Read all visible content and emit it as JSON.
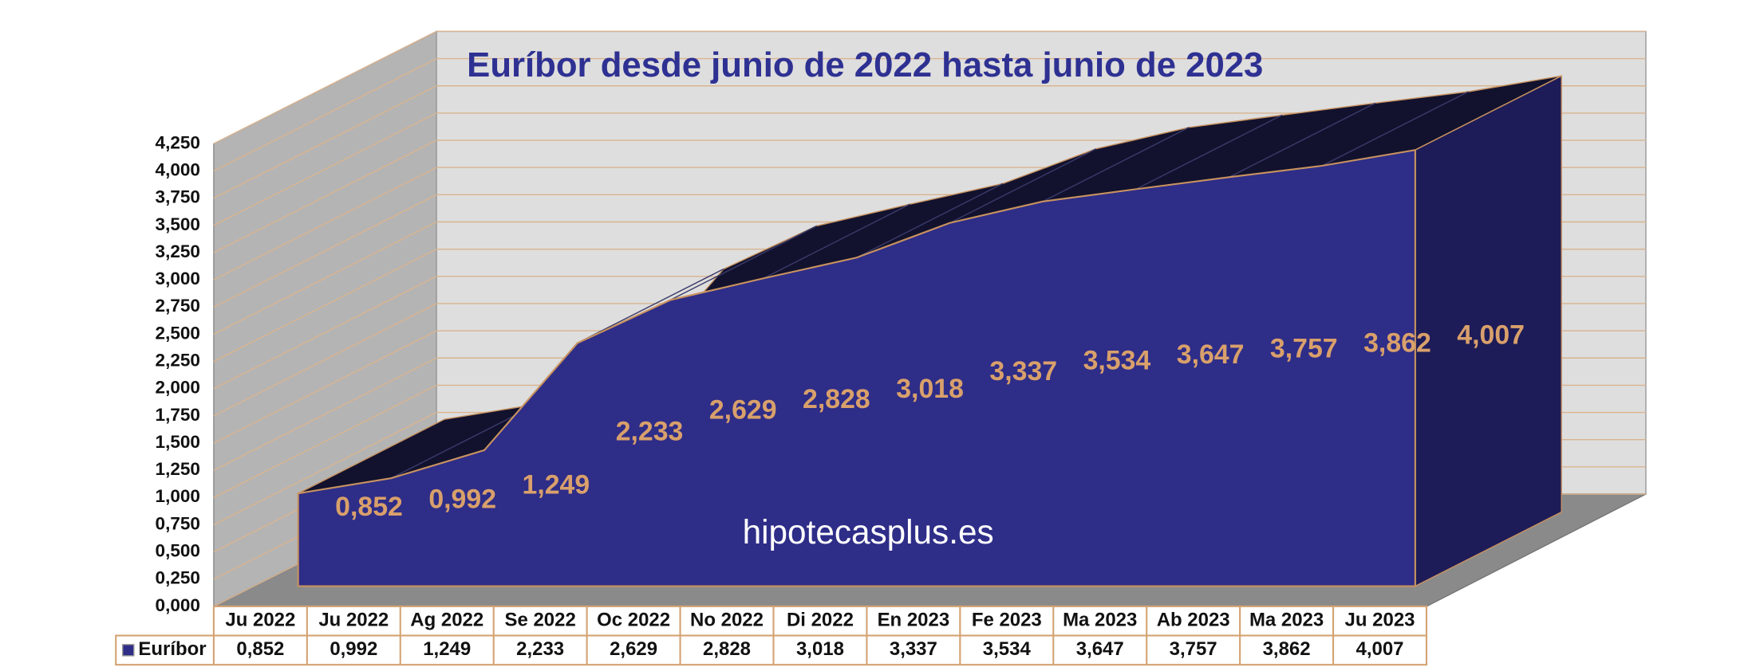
{
  "chart_data": {
    "type": "area3d",
    "title": "Euríbor desde junio de 2022 hasta junio de 2023",
    "watermark": "hipotecasplus.es",
    "categories": [
      "Ju 2022",
      "Ju 2022",
      "Ag 2022",
      "Se 2022",
      "Oc 2022",
      "No 2022",
      "Di 2022",
      "En 2023",
      "Fe 2023",
      "Ma 2023",
      "Ab 2023",
      "Ma 2023",
      "Ju 2023"
    ],
    "series": [
      {
        "name": "Euríbor",
        "color": "#2e2d88",
        "values": [
          0.852,
          0.992,
          1.249,
          2.233,
          2.629,
          2.828,
          3.018,
          3.337,
          3.534,
          3.647,
          3.757,
          3.862,
          4.007
        ],
        "value_labels": [
          "0,852",
          "0,992",
          "1,249",
          "2,233",
          "2,629",
          "2,828",
          "3,018",
          "3,337",
          "3,534",
          "3,647",
          "3,757",
          "3,862",
          "4,007"
        ]
      }
    ],
    "ylim": [
      0,
      4.25
    ],
    "yticks": [
      {
        "value": 0,
        "label": "0,000"
      },
      {
        "value": 0.25,
        "label": "0,250"
      },
      {
        "value": 0.5,
        "label": "0,500"
      },
      {
        "value": 0.75,
        "label": "0,750"
      },
      {
        "value": 1,
        "label": "1,000"
      },
      {
        "value": 1.25,
        "label": "1,250"
      },
      {
        "value": 1.5,
        "label": "1,500"
      },
      {
        "value": 1.75,
        "label": "1,750"
      },
      {
        "value": 2,
        "label": "2,000"
      },
      {
        "value": 2.25,
        "label": "2,250"
      },
      {
        "value": 2.5,
        "label": "2,500"
      },
      {
        "value": 2.75,
        "label": "2,750"
      },
      {
        "value": 3,
        "label": "3,000"
      },
      {
        "value": 3.25,
        "label": "3,250"
      },
      {
        "value": 3.5,
        "label": "3,500"
      },
      {
        "value": 3.75,
        "label": "3,750"
      },
      {
        "value": 4,
        "label": "4,000"
      },
      {
        "value": 4.25,
        "label": "4,250"
      }
    ],
    "grid": true,
    "data_table": true
  }
}
